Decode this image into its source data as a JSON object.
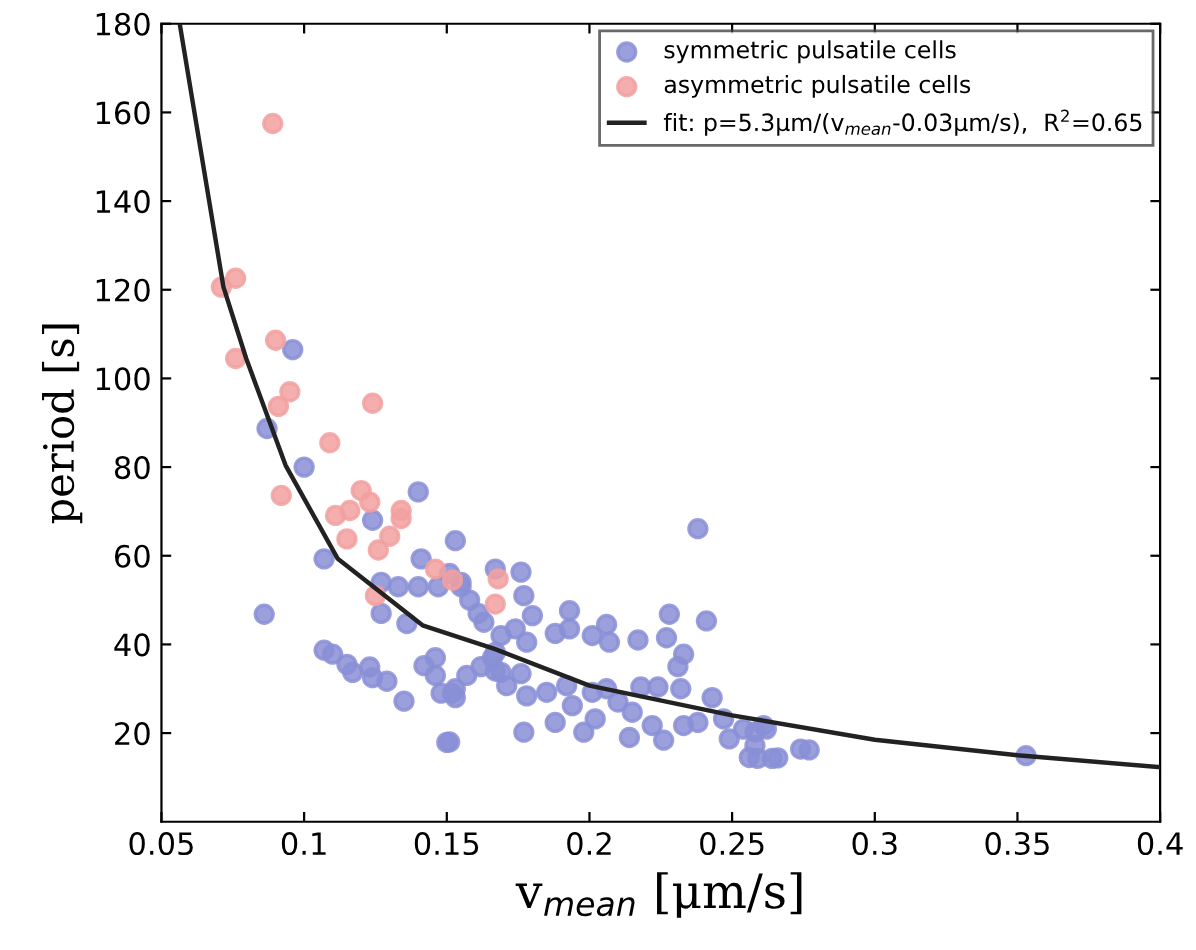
{
  "chart_data": {
    "type": "scatter",
    "xlabel": "v$_{mean}$ [μm/s]",
    "ylabel": "period [s]",
    "xlim": [
      0.05,
      0.4
    ],
    "ylim": [
      0,
      180
    ],
    "xticks": [
      0.05,
      0.1,
      0.15,
      0.2,
      0.25,
      0.3,
      0.35,
      0.4
    ],
    "yticks": [
      20,
      40,
      60,
      80,
      100,
      120,
      140,
      160,
      180
    ],
    "grid": false,
    "legend": "top right",
    "marker": "circle",
    "series": [
      {
        "name": "symmetric pulsatile cells",
        "color": "#8a8fd6",
        "x": [
          0.096,
          0.087,
          0.1,
          0.14,
          0.124,
          0.107,
          0.086,
          0.153,
          0.141,
          0.127,
          0.133,
          0.14,
          0.127,
          0.136,
          0.147,
          0.151,
          0.155,
          0.107,
          0.11,
          0.115,
          0.117,
          0.123,
          0.124,
          0.129,
          0.135,
          0.142,
          0.146,
          0.146,
          0.148,
          0.152,
          0.15,
          0.153,
          0.153,
          0.157,
          0.162,
          0.167,
          0.155,
          0.158,
          0.161,
          0.163,
          0.166,
          0.167,
          0.169,
          0.238,
          0.176,
          0.177,
          0.18,
          0.174,
          0.178,
          0.193,
          0.193,
          0.188,
          0.201,
          0.206,
          0.207,
          0.217,
          0.227,
          0.228,
          0.241,
          0.233,
          0.231,
          0.167,
          0.169,
          0.176,
          0.171,
          0.178,
          0.185,
          0.192,
          0.194,
          0.201,
          0.206,
          0.21,
          0.215,
          0.218,
          0.224,
          0.232,
          0.243,
          0.238,
          0.247,
          0.177,
          0.188,
          0.198,
          0.202,
          0.214,
          0.222,
          0.226,
          0.233,
          0.249,
          0.254,
          0.258,
          0.262,
          0.274,
          0.261,
          0.258,
          0.266,
          0.353,
          0.151,
          0.256,
          0.259,
          0.264,
          0.277
        ],
        "values": [
          106.5,
          88.7,
          80,
          74.4,
          68,
          59.3,
          46.8,
          63.4,
          59.3,
          54,
          53,
          53,
          47,
          44.7,
          53,
          56,
          54,
          38.7,
          37.8,
          35.5,
          33.7,
          34.9,
          32.5,
          31.7,
          27.2,
          35.2,
          37,
          33,
          29,
          29,
          17.9,
          28,
          30,
          33,
          35,
          34,
          53,
          50,
          47,
          45,
          37,
          57,
          42,
          66.1,
          56.3,
          51,
          46.5,
          43.5,
          40.5,
          47.6,
          43.5,
          42.5,
          42,
          44.5,
          40.5,
          41,
          41.5,
          46.8,
          45.3,
          37.8,
          35,
          38.2,
          33.7,
          33.4,
          30.7,
          28.4,
          29.2,
          30.7,
          26.2,
          29.2,
          30,
          27,
          24.7,
          30.4,
          30.4,
          30,
          28,
          22.4,
          23.2,
          20.2,
          22.4,
          20.2,
          23.2,
          19,
          21.7,
          18.4,
          21.7,
          18.7,
          20.9,
          20.2,
          20.9,
          16.4,
          21.7,
          17.2,
          14.4,
          14.9,
          18,
          14.5,
          14.3,
          14.3,
          16.2
        ]
      },
      {
        "name": "asymmetric pulsatile cells",
        "color": "#f2a0a0",
        "x": [
          0.089,
          0.071,
          0.076,
          0.09,
          0.076,
          0.095,
          0.091,
          0.124,
          0.109,
          0.092,
          0.111,
          0.116,
          0.12,
          0.123,
          0.115,
          0.13,
          0.126,
          0.134,
          0.134,
          0.125,
          0.146,
          0.152,
          0.167,
          0.168
        ],
        "values": [
          157.5,
          120.6,
          122.6,
          108.6,
          104.5,
          97,
          93.7,
          94.4,
          85.5,
          73.6,
          69.1,
          70.2,
          74.7,
          72.1,
          63.8,
          64.4,
          61.3,
          70.2,
          68.4,
          51,
          57,
          54.5,
          49.1,
          54.8
        ]
      },
      {
        "name": "fit: p=5.3μm/(v$_{mean}$-0.03μm/s),  R$^{2}$=0.65",
        "type": "line",
        "color": "#222222",
        "marker": "none",
        "line_style": "solid",
        "x": [
          0.0564,
          0.0717,
          0.0797,
          0.0935,
          0.1118,
          0.1415,
          0.1667,
          0.2,
          0.25,
          0.3,
          0.35,
          0.4
        ],
        "values": [
          180,
          120.7,
          104.5,
          80.4,
          59.3,
          44.3,
          39,
          30.7,
          24,
          18.5,
          15,
          12.3
        ]
      }
    ]
  }
}
